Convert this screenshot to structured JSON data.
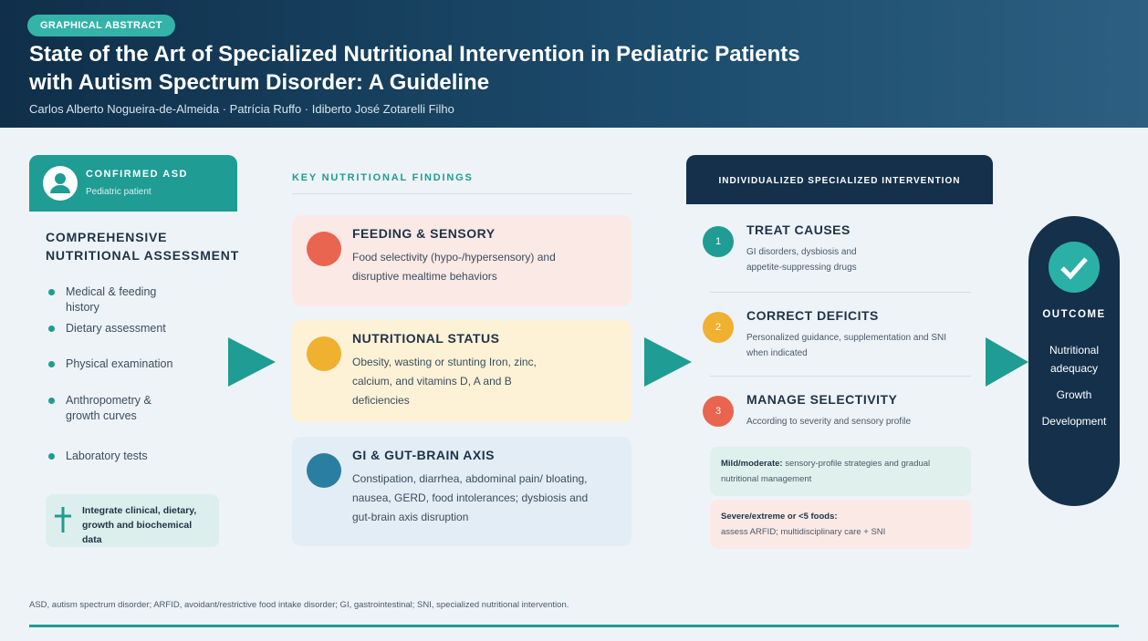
{
  "header": {
    "badge": "GRAPHICAL ABSTRACT",
    "title_lines": [
      "State of the Art of Specialized Nutritional Intervention in Pediatric Patients",
      "with Autism Spectrum Disorder: A Guideline"
    ],
    "authors": "Carlos Alberto Nogueira-de-Almeida · Patrícia Ruffo · Idiberto José Zotarelli Filho"
  },
  "assessment": {
    "tag_title": "CONFIRMED ASD",
    "tag_subtitle": "Pediatric patient",
    "title_lines": [
      "COMPREHENSIVE",
      "NUTRITIONAL ASSESSMENT"
    ],
    "items": [
      "Medical & feeding history",
      "Dietary assessment",
      "Physical examination",
      "Anthropometry & growth curves",
      "Laboratory tests"
    ],
    "note": "Integrate clinical, dietary, growth and biochemical data"
  },
  "findings": {
    "title": "KEY NUTRITIONAL FINDINGS",
    "cards": [
      {
        "title": "FEEDING & SENSORY",
        "text": "Food selectivity (hypo-/hypersensory) and disruptive mealtime behaviors"
      },
      {
        "title": "NUTRITIONAL STATUS",
        "text": "Obesity, wasting or stunting Iron, zinc, calcium, and vitamins D, A and B deficiencies"
      },
      {
        "title": "GI & GUT-BRAIN AXIS",
        "text": "Constipation, diarrhea, abdominal pain/ bloating, nausea, GERD, food intolerances; dysbiosis and gut-brain axis disruption"
      }
    ]
  },
  "intervention": {
    "title": "INDIVIDUALIZED SPECIALIZED INTERVENTION",
    "steps": [
      {
        "number": "1",
        "title": "TREAT CAUSES",
        "text": "GI disorders, dysbiosis and appetite-suppressing drugs"
      },
      {
        "number": "2",
        "title": "CORRECT DEFICITS",
        "text": "Personalized guidance, supplementation and SNI when indicated"
      },
      {
        "number": "3",
        "title": "MANAGE SELECTIVITY",
        "text": "According to severity and sensory profile"
      }
    ],
    "severity": [
      {
        "label": "Mild/moderate:",
        "text": "sensory-profile strategies and gradual nutritional management"
      },
      {
        "label": "Severe/extreme or <5 foods:",
        "text": "assess ARFID; multidisciplinary care + SNI"
      }
    ]
  },
  "outcome": {
    "title": "OUTCOME",
    "items": [
      "Nutritional adequacy",
      "Growth",
      "Development"
    ]
  },
  "footnote": "ASD, autism spectrum disorder; ARFID, avoidant/restrictive food intake disorder; GI, gastrointestinal; SNI, specialized nutritional intervention."
}
